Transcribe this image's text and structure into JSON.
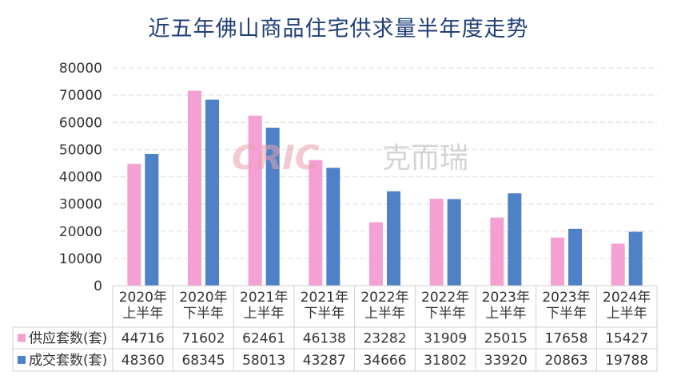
{
  "chart_data": {
    "type": "bar",
    "title": "近五年佛山商品住宅供求量半年度走势",
    "categories": [
      [
        "2020年",
        "上半年"
      ],
      [
        "2020年",
        "下半年"
      ],
      [
        "2021年",
        "上半年"
      ],
      [
        "2021年",
        "下半年"
      ],
      [
        "2022年",
        "上半年"
      ],
      [
        "2022年",
        "下半年"
      ],
      [
        "2023年",
        "上半年"
      ],
      [
        "2023年",
        "下半年"
      ],
      [
        "2024年",
        "上半年"
      ]
    ],
    "series": [
      {
        "name": "供应套数(套)",
        "color": "#f4a0d2",
        "values": [
          44716,
          71602,
          62461,
          46138,
          23282,
          31909,
          25015,
          17658,
          15427
        ]
      },
      {
        "name": "成交套数(套)",
        "color": "#4f81c7",
        "values": [
          48360,
          68345,
          58013,
          43287,
          34666,
          31802,
          33920,
          20863,
          19788
        ]
      }
    ],
    "yticks": [
      "0",
      "10000",
      "20000",
      "30000",
      "40000",
      "50000",
      "60000",
      "70000",
      "80000"
    ],
    "ylim": [
      0,
      80000
    ],
    "grid": true,
    "legend": "data-table"
  },
  "watermark": {
    "logo": "CRIC",
    "text": "克而瑞"
  }
}
